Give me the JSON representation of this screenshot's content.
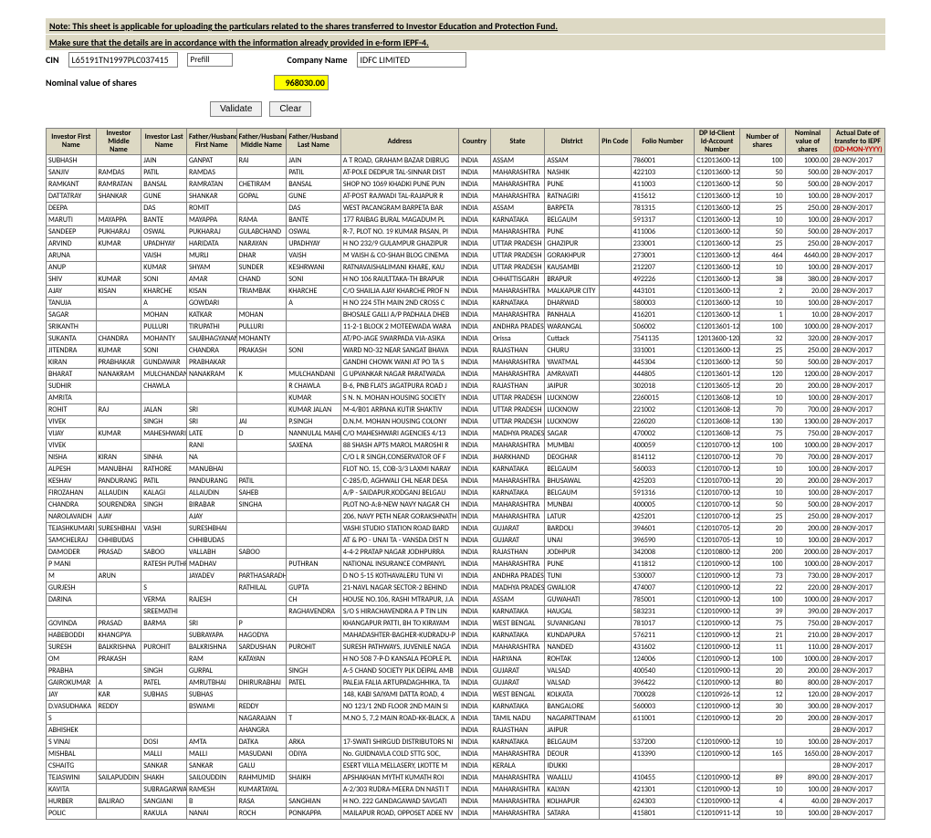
{
  "note1": "Note: This sheet is applicable for uploading the particulars related to the shares transferred to Investor Education and Protection Fund.",
  "note2": "Make sure that the details are in accordance with the information already provided in e-form IEPF-4.",
  "labels": {
    "cin": "CIN",
    "prefill": "Prefill",
    "company": "Company Name",
    "nominal": "Nominal value of shares",
    "validate": "Validate",
    "clear": "Clear"
  },
  "cin": "L65191TN1997PLC037415",
  "company": "IDFC LIMITED",
  "nominal": "968030.00",
  "columns": [
    "Investor First Name",
    "Investor Middle Name",
    "Investor Last Name",
    "Father/Husband First Name",
    "Father/Husband Middle Name",
    "Father/Husband Last Name",
    "Address",
    "Country",
    "State",
    "District",
    "Pin Code",
    "Folio Number",
    "DP Id-Client Id-Account Number",
    "Number of shares",
    "Nominal value of shares",
    "Actual Date of transfer to IEPF"
  ],
  "dateSuffix": " (DD-MON-YYYY)",
  "rows": [
    [
      "SUBHASH",
      "",
      "JAIN",
      "GANPAT",
      "RAI",
      "JAIN",
      "A T ROAD, GRAHAM BAZAR DIBRUG",
      "INDIA",
      "ASSAM",
      "ASSAM",
      "",
      "786001",
      "C12013600-12010600-",
      "100",
      "1000.00",
      "28-NOV-2017"
    ],
    [
      "SANJIV",
      "RAMDAS",
      "PATIL",
      "RAMDAS",
      "",
      "PATIL",
      "AT-POLE DEDPUR TAL-SINNAR DIST",
      "INDIA",
      "MAHARASHTRA",
      "NASHIK",
      "",
      "422103",
      "C12013600-12010600-",
      "50",
      "500.00",
      "28-NOV-2017"
    ],
    [
      "RAMKANT",
      "RAMRATAN",
      "BANSAL",
      "RAMRATAN",
      "CHETIRAM",
      "BANSAL",
      "SHOP NO 1069 KHADKI PUNE PUN",
      "INDIA",
      "MAHARASHTRA",
      "PUNE",
      "",
      "411003",
      "C12013600-12010600-",
      "50",
      "500.00",
      "28-NOV-2017"
    ],
    [
      "DATTATRAY",
      "SHANKAR",
      "GUNE",
      "SHANKAR",
      "GOPAL",
      "GUNE",
      "AT-POST RAJWADI TAL-RAJAPUR R",
      "INDIA",
      "MAHARASHTRA",
      "RATNAGIRI",
      "",
      "415612",
      "C12013600-12010600-",
      "10",
      "100.00",
      "28-NOV-2017"
    ],
    [
      "DEEPA",
      "",
      "DAS",
      "ROMIT",
      "",
      "DAS",
      "WEST PACANGRAM BARPETA  BAR",
      "INDIA",
      "ASSAM",
      "BARPETA",
      "",
      "781315",
      "C12013600-12010600-",
      "25",
      "250.00",
      "28-NOV-2017"
    ],
    [
      "MARUTI",
      "MAYAPPA",
      "BANTE",
      "MAYAPPA",
      "RAMA",
      "BANTE",
      "177  RAIBAG BURAL MAGADUM PL",
      "INDIA",
      "KARNATAKA",
      "BELGAUM",
      "",
      "591317",
      "C12013600-12010600-",
      "10",
      "100.00",
      "28-NOV-2017"
    ],
    [
      "SANDEEP",
      "PUKHARAJ",
      "OSWAL",
      "PUKHARAJ",
      "GULABCHAND",
      "OSWAL",
      "R-7, PLOT NO. 19 KUMAR PASAN, PI",
      "INDIA",
      "MAHARASHTRA",
      "PUNE",
      "",
      "411006",
      "C12013600-12010600-",
      "50",
      "500.00",
      "28-NOV-2017"
    ],
    [
      "ARVIND",
      "KUMAR",
      "UPADHYAY",
      "HARIDATA",
      "NARAYAN",
      "UPADHYAY",
      "H NO 232/9 GULAMPUR GHAZIPUR",
      "INDIA",
      "UTTAR PRADESH",
      "GHAZIPUR",
      "",
      "233001",
      "C12013600-12010600-",
      "25",
      "250.00",
      "28-NOV-2017"
    ],
    [
      "ARUNA",
      "",
      "VAISH",
      "MURLI",
      "DHAR",
      "VAISH",
      "M VAISH & CO-SHAH BLOG CINEMA",
      "INDIA",
      "UTTAR PRADESH",
      "GORAKHPUR",
      "",
      "273001",
      "C12013600-12010600-",
      "464",
      "4640.00",
      "28-NOV-2017"
    ],
    [
      "ANUP",
      "",
      "KUMAR",
      "SHYAM",
      "SUNDER",
      "KESHRWANI",
      "RATNAVAISHALIMANI KHARE, KAU",
      "INDIA",
      "UTTAR PRADESH",
      "KAUSAMBI",
      "",
      "212207",
      "C12013600-12010600-",
      "10",
      "100.00",
      "28-NOV-2017"
    ],
    [
      "SHIV",
      "KUMAR",
      "SONI",
      "AMAR",
      "CHAND",
      "SONI",
      "H NO 106 RAULTTAKA-TH BRAPUR",
      "INDIA",
      "CHHATTISGARH",
      "BRAPUR",
      "",
      "492226",
      "C12013600-12010600-",
      "38",
      "380.00",
      "28-NOV-2017"
    ],
    [
      "AJAY",
      "KISAN",
      "KHARCHE",
      "KISAN",
      "TRIAMBAK",
      "KHARCHE",
      "C/O SHAILJA AJAY KHARCHE PROF N",
      "INDIA",
      "MAHARASHTRA",
      "MALKAPUR CITY",
      "",
      "443101",
      "C12013600-12010600-",
      "2",
      "20.00",
      "28-NOV-2017"
    ],
    [
      "TANUJA",
      "",
      "A",
      "GOWDARI",
      "",
      "A",
      "H NO 224 5TH MAIN 2ND CROSS  C",
      "INDIA",
      "KARNATAKA",
      "DHARWAD",
      "",
      "580003",
      "C12013600-12010600-",
      "10",
      "100.00",
      "28-NOV-2017"
    ],
    [
      "SAGAR",
      "",
      "MOHAN",
      "KATKAR",
      "MOHAN",
      "",
      "BHOSALE GALLI A/P PADHALA DHEB",
      "INDIA",
      "MAHARASHTRA",
      "PANHALA",
      "",
      "416201",
      "C12013600-12010600-",
      "1",
      "10.00",
      "28-NOV-2017"
    ],
    [
      "SRIKANTH",
      "",
      "PULLURI",
      "TIRUPATHI",
      "PULLURI",
      "",
      "11-2-1 BLOCK 2 MOTEEWADA  WARA",
      "INDIA",
      "ANDHRA PRADESH",
      "WARANGAL",
      "",
      "506002",
      "C12013601-12010800-",
      "100",
      "1000.00",
      "28-NOV-2017"
    ],
    [
      "SUKANTA",
      "CHANDRA",
      "MOHANTY",
      "SAUBHAGYANANDA",
      "MOHANTY",
      "",
      "AT/PO-JAGE SWARPADA VIA-ASIKA",
      "INDIA",
      "Orissa",
      "Cuttack",
      "",
      "7541135",
      "12013600-12010600-",
      "32",
      "320.00",
      "28-NOV-2017"
    ],
    [
      "JITENDRA",
      "KUMAR",
      "SONI",
      "CHANDRA",
      "PRAKASH",
      "SONI",
      "WARD NO-32 NEAR SANGAT BHAVA",
      "INDIA",
      "RAJASTHAN",
      "CHURU",
      "",
      "331001",
      "C12013600-12010600-",
      "25",
      "250.00",
      "28-NOV-2017"
    ],
    [
      "KIRAN",
      "PRABHAKAR",
      "GUNDAWAR",
      "PRABHAKAR",
      "",
      "",
      "GANDHI CHOWK WANI AT PO  TA  S",
      "INDIA",
      "MAHARASHTRA",
      "YAVATMAL",
      "",
      "445304",
      "C12013600-12010600-",
      "50",
      "500.00",
      "28-NOV-2017"
    ],
    [
      "BHARAT",
      "NANAKRAM",
      "MULCHANDANI",
      "NANAKRAM",
      "K",
      "MULCHANDANI",
      "G UPVANKAR NAGAR PARATWADA",
      "INDIA",
      "MAHARASHTRA",
      "AMRAVATI",
      "",
      "444805",
      "C12013601-12010601-",
      "120",
      "1200.00",
      "28-NOV-2017"
    ],
    [
      "SUDHIR",
      "",
      "CHAWLA",
      "",
      "",
      "R CHAWLA",
      "B-6, PNB FLATS JAGATPURA ROAD J",
      "INDIA",
      "RAJASTHAN",
      "JAIPUR",
      "",
      "302018",
      "C12013605-12010605-",
      "20",
      "200.00",
      "28-NOV-2017"
    ],
    [
      "AMRITA",
      "",
      "",
      "",
      "",
      "KUMAR",
      "S N. N. MOHAN HOUSING SOCIETY",
      "INDIA",
      "UTTAR PRADESH",
      "LUCKNOW",
      "",
      "2260015",
      "C12013608-12010606-",
      "10",
      "100.00",
      "28-NOV-2017"
    ],
    [
      "ROHIT",
      "RAJ",
      "JALAN",
      "SRI",
      "",
      "KUMAR JALAN",
      "M-4/B01 ARPANA KUTIR SHAKTIV",
      "INDIA",
      "UTTAR PRADESH",
      "LUCKNOW",
      "",
      "221002",
      "C12013608-12010608-",
      "70",
      "700.00",
      "28-NOV-2017"
    ],
    [
      "VIVEK",
      "",
      "SINGH",
      "SRI",
      "JAI",
      "P.SINGH",
      "D.N.M. MOHAN HOUSING COLONY",
      "INDIA",
      "UTTAR PRADESH",
      "LUCKNOW",
      "",
      "226020",
      "C12013608-12010608-",
      "130",
      "1300.00",
      "28-NOV-2017"
    ],
    [
      "VIJAY",
      "KUMAR",
      "MAHESHWARI",
      "LATE",
      "D",
      "NANNULAL MAHESHWARI",
      "C/O MAHESHWARI AGENCIES 4/13",
      "INDIA",
      "MADHYA PRADESH",
      "SAGAR",
      "",
      "470002",
      "C12013608-12010608-",
      "75",
      "750.00",
      "28-NOV-2017"
    ],
    [
      "VIVEK",
      "",
      "",
      "RANI",
      "",
      "SAXENA",
      "88 SHASH APTS MAROL MAROSHI R",
      "INDIA",
      "MAHARASHTRA",
      "MUMBAI",
      "",
      "400059",
      "C12010700-12010700-",
      "100",
      "1000.00",
      "28-NOV-2017"
    ],
    [
      "NISHA",
      "KIRAN",
      "SINHA",
      "NA",
      "",
      "",
      "C/O L R SINGH,CONSERVATOR OF F",
      "INDIA",
      "JHARKHAND",
      "DEOGHAR",
      "",
      "814112",
      "C12010700-12010700-",
      "70",
      "700.00",
      "28-NOV-2017"
    ],
    [
      "ALPESH",
      "MANUBHAI",
      "RATHORE",
      "MANUBHAI",
      "",
      "",
      "FLOT NO. 15, COB-3/3 LAXMI NARAY",
      "INDIA",
      "KARNATAKA",
      "BELGAUM",
      "",
      "560033",
      "C12010700-12010700-",
      "10",
      "100.00",
      "28-NOV-2017"
    ],
    [
      "KESHAV",
      "PANDURANG",
      "PATIL",
      "PANDURANG",
      "PATIL",
      "",
      "C-285/D, AGHWALI CHL NEAR DESA",
      "INDIA",
      "MAHARASHTRA",
      "BHUSAWAL",
      "",
      "425203",
      "C12010700-12010700-",
      "20",
      "200.00",
      "28-NOV-2017"
    ],
    [
      "FIROZAHAN",
      "ALLAUDIN",
      "KALAGI",
      "ALLAUDIN",
      "SAHEB",
      "",
      "A/P - SAIDAPUR,KODGANJ BELGAU",
      "INDIA",
      "KARNATAKA",
      "BELGAUM",
      "",
      "591316",
      "C12010700-12010700-",
      "10",
      "100.00",
      "28-NOV-2017"
    ],
    [
      "CHANDRA",
      "SOURENDRA",
      "SINGH",
      "BIRABAR",
      "SINGHA",
      "",
      "PLOT NO-A:8-NEW NAVY NAGAR CH",
      "INDIA",
      "MAHARASHTRA",
      "MUNBAI",
      "",
      "400005",
      "C12010700-12010700-",
      "50",
      "500.00",
      "28-NOV-2017"
    ],
    [
      "NAROLAVAIDH",
      "AJAY",
      "",
      "AJAY",
      "",
      "",
      "206, NAVY PETH NEAR GORAKSHNATH",
      "INDIA",
      "MAHARASHTRA",
      "LATUR",
      "",
      "425201",
      "C12010700-12010700-",
      "25",
      "250.00",
      "28-NOV-2017"
    ],
    [
      "TEJASHKUMARI",
      "SURESHBHAI",
      "VASHI",
      "SURESHBHAI",
      "",
      "",
      "VASHI STUDIO STATION ROAD BARD",
      "INDIA",
      "GUJARAT",
      "BARDOLI",
      "",
      "394601",
      "C12010705-12010705-",
      "20",
      "200.00",
      "28-NOV-2017"
    ],
    [
      "SAMCHELRAJ",
      "CHHIBUDAS",
      "",
      "CHHIBUDAS",
      "",
      "",
      "AT & PO - UNAI TA - VANSDA DIST  N",
      "INDIA",
      "GUJARAT",
      "UNAI",
      "",
      "396590",
      "C12010705-12010705-",
      "10",
      "100.00",
      "28-NOV-2017"
    ],
    [
      "DAMODER",
      "PRASAD",
      "SABOO",
      "VALLABH",
      "SABOO",
      "",
      "4-4-2 PRATAP NAGAR JODHPURRA",
      "INDIA",
      "RAJASTHAN",
      "JODHPUR",
      "",
      "342008",
      "C12010800-12010800-",
      "200",
      "2000.00",
      "28-NOV-2017"
    ],
    [
      "P MANI",
      "",
      "RATESH PUTHRAN",
      "MADHAV",
      "",
      "PUTHRAN",
      "NATIONAL INSURANCE COMPANYL",
      "INDIA",
      "MAHARASHTRA",
      "PUNE",
      "",
      "411812",
      "C12010900-12010900-",
      "100",
      "1000.00",
      "28-NOV-2017"
    ],
    [
      "M",
      "ARUN",
      "",
      "JAYADEV",
      "PARTHASARADHIM",
      "",
      "D NO 5-15 KOTHAVALERU  TUNI VI",
      "INDIA",
      "ANDHRA PRADESH",
      "TUNI",
      "",
      "530007",
      "C12010900-12010900-",
      "73",
      "730.00",
      "28-NOV-2017"
    ],
    [
      "GURJESH",
      "",
      "S",
      "",
      "RATHILAL",
      "GUPTA",
      "21-NAVL NAGAR SECTOR-2 BEHIND",
      "INDIA",
      "MADHYA PRADESH",
      "GWALIOR",
      "",
      "474007",
      "C12010900-12010900-",
      "22",
      "220.00",
      "28-NOV-2017"
    ],
    [
      "DARINA",
      "",
      "VERMA",
      "RAJESH",
      "",
      "CH",
      "HOUSE NO.106, RASHI MTRAPUR, J.A",
      "INDIA",
      "ASSAM",
      "GUWAHATI",
      "",
      "785001",
      "C12010900-12010900-",
      "100",
      "1000.00",
      "28-NOV-2017"
    ],
    [
      "",
      "",
      "SREEMATHI",
      "",
      "",
      "RAGHAVENDRA",
      "S/O S HIRACHAVENDRA A P TIN LIN",
      "INDIA",
      "KARNATAKA",
      "HAUGAL",
      "",
      "583231",
      "C12010900-12010900-",
      "39",
      "390.00",
      "28-NOV-2017"
    ],
    [
      "GOVINDA",
      "PRASAD",
      "BARMA",
      "SRI",
      "P",
      "",
      "KHANGAPUR PATTI, BH TO KIRAYAM",
      "INDIA",
      "WEST BENGAL",
      "SUVANIGANJ",
      "",
      "781017",
      "C12010900-12010900-",
      "75",
      "750.00",
      "28-NOV-2017"
    ],
    [
      "HABEBODDI",
      "KHANGPYA",
      "",
      "SUBRAYAPA",
      "HAGODYA",
      "",
      "MAHADASHTER-BAGHER-KUDRADU-P",
      "INDIA",
      "KARNATAKA",
      "KUNDAPURA",
      "",
      "576211",
      "C12010900-12010900-",
      "21",
      "210.00",
      "28-NOV-2017"
    ],
    [
      "SURESH",
      "BALKRISHNA",
      "PUROHIT",
      "BALKRISHNA",
      "SARDUSHAN",
      "PUROHIT",
      "SURESH PATHWAYS, JUVENILE NAGA",
      "INDIA",
      "MAHARASHTRA",
      "NANDED",
      "",
      "431602",
      "C12010900-12010900-",
      "11",
      "110.00",
      "28-NOV-2017"
    ],
    [
      "OM",
      "PRAKASH",
      "",
      "RAM",
      "KATAYAN",
      "",
      "H NO 508 7-P-D KANSALA PEOPLE PL",
      "INDIA",
      "HARYANA",
      "ROHTAK",
      "",
      "124006",
      "C12010900-12010900-",
      "100",
      "1000.00",
      "28-NOV-2017"
    ],
    [
      "PRABHA",
      "",
      "SINGH",
      "GURPAL",
      "",
      "SINGH",
      "A-5 CHAND SOCIETY PLK DEIPAL AMB",
      "INDIA",
      "GUJARAT",
      "VALSAD",
      "",
      "400540",
      "C12010900-12010900-",
      "20",
      "200.00",
      "28-NOV-2017"
    ],
    [
      "GAIROKUMAR",
      "A",
      "PATEL",
      "AMRUTBHAI",
      "DHIRURABHAI",
      "PATEL",
      "PALEJA FALIA  ARTUPADAGHHIKA, TA",
      "INDIA",
      "GUJARAT",
      "VALSAD",
      "",
      "396422",
      "C12010900-12010900-",
      "80",
      "800.00",
      "28-NOV-2017"
    ],
    [
      "JAY",
      "KAR",
      "SUBHAS",
      "SUBHAS",
      "",
      "",
      "148, KABI SAIYAMI DATTA ROAD, 4",
      "INDIA",
      "WEST BENGAL",
      "KOLKATA",
      "",
      "700028",
      "C12010926-12010926-",
      "12",
      "120.00",
      "28-NOV-2017"
    ],
    [
      "D.VASUDHAKA",
      "REDDY",
      "",
      "BSWAMI",
      "REDDY",
      "",
      "NO 123/1 2ND FLOOR 2ND MAIN SI",
      "INDIA",
      "KARNATAKA",
      "BANGALORE",
      "",
      "560003",
      "C12010900-12010900-",
      "30",
      "300.00",
      "28-NOV-2017"
    ],
    [
      "S",
      "",
      "",
      "",
      "NAGARAJAN",
      "T",
      "M.NO 5, 7,2 MAIN ROAD-KK-BLACK, A",
      "INDIA",
      "TAMIL NADU",
      "NAGAPATTINAM",
      "",
      "611001",
      "C12010900-12010900-",
      "20",
      "200.00",
      "28-NOV-2017"
    ],
    [
      "ABHISHEK",
      "",
      "",
      "",
      "AHANGRA",
      "",
      "",
      "INDIA",
      "RAJASTHAN",
      "JAIPUR",
      "",
      "",
      "",
      "",
      "",
      "28-NOV-2017"
    ],
    [
      "S VINAI",
      "",
      "DOSI",
      "AMTA",
      "DATKA",
      "ARKA",
      "17-SWATI SHIRGUD DISTRIBUTORS NI",
      "INDIA",
      "KARNATAKA",
      "BELGAUM",
      "",
      "537200",
      "C12010900-12010900-",
      "10",
      "100.00",
      "28-NOV-2017"
    ],
    [
      "MISHBAL",
      "",
      "MALLI",
      "MALLI",
      "MASUDANI",
      "ODIYA",
      "No. GUIDNAVLA COLD STTG SOC,",
      "INDIA",
      "MAHARASHTRA",
      "DEOUR",
      "",
      "413390",
      "C12010900-12010900-",
      "165",
      "1650.00",
      "28-NOV-2017"
    ],
    [
      "CSHAITG",
      "",
      "SANKAR",
      "SANKAR",
      "GALU",
      "",
      "ESERT VILLA MELLASERY, LKOTTE M",
      "INDIA",
      "KERALA",
      "IDUKKI",
      "",
      "",
      "",
      "",
      "",
      "28-NOV-2017"
    ],
    [
      "TEJASWINI",
      "SAILAPUDDIN",
      "SHAKH",
      "SAILOUDDIN",
      "RAHMUMID",
      "SHAIKH",
      "APSHAKHAN MYTHT KUMATH ROI",
      "INDIA",
      "MAHARASHTRA",
      "WAALLU",
      "",
      "410455",
      "C12010900-12010900-",
      "89",
      "890.00",
      "28-NOV-2017"
    ],
    [
      "KAVITA",
      "",
      "SUBRAGARWAL",
      "RAMESH",
      "KUMARTAYAL",
      "",
      "A-2/303 RUDRA-MEERA  DN NASTI T",
      "INDIA",
      "MAHARASHTRA",
      "KALYAN",
      "",
      "421301",
      "C12010900-12010900-",
      "10",
      "100.00",
      "28-NOV-2017"
    ],
    [
      "HURBER",
      "BALIRAO",
      "SANGIANI",
      "B",
      "RASA",
      "SANGHIAN",
      "H NO. 222 GANDAGAWAD SAVGATI",
      "INDIA",
      "MAHARASHTRA",
      "KOLHAPUR",
      "",
      "624303",
      "C12010900-12010900-",
      "4",
      "40.00",
      "28-NOV-2017"
    ],
    [
      "POLIC",
      "",
      "RAKULA",
      "NANAI",
      "ROCH",
      "PONKAPPA",
      "MAILAPUR ROAD, OPPOSET ADEE NV",
      "INDIA",
      "MAHARASHTRA",
      "SATARA",
      "",
      "415801",
      "C12010911-12010911-",
      "10",
      "100.00",
      "28-NOV-2017"
    ]
  ]
}
